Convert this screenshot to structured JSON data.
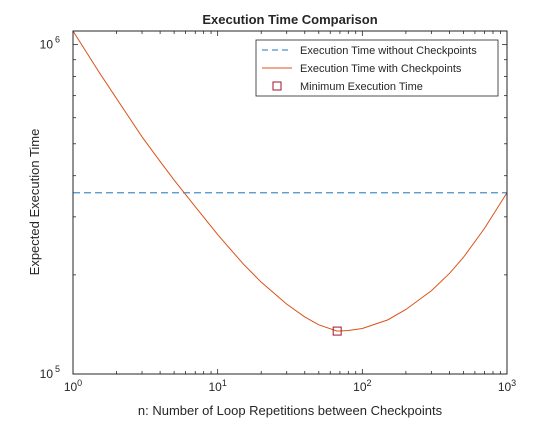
{
  "chart_data": {
    "type": "line",
    "title": "Execution Time Comparison",
    "xlabel": "n: Number of Loop Repetitions between Checkpoints",
    "ylabel": "Expected Execution Time",
    "x_scale": "log",
    "y_scale": "log",
    "xlim": [
      1,
      1000
    ],
    "ylim": [
      100000,
      1100000
    ],
    "x_ticks": [
      {
        "value": 1,
        "base": "10",
        "exp": "0"
      },
      {
        "value": 10,
        "base": "10",
        "exp": "1"
      },
      {
        "value": 100,
        "base": "10",
        "exp": "2"
      },
      {
        "value": 1000,
        "base": "10",
        "exp": "3"
      }
    ],
    "y_ticks": [
      {
        "value": 100000,
        "base": "10",
        "exp": "5"
      },
      {
        "value": 1000000,
        "base": "10",
        "exp": "6"
      }
    ],
    "grid": false,
    "legend_position": "top-right",
    "series": [
      {
        "name": "Execution Time without Checkpoints",
        "style": "dashed",
        "color": "#4a90c8",
        "x": [
          1,
          1000
        ],
        "y": [
          355000,
          355000
        ]
      },
      {
        "name": "Execution Time with Checkpoints",
        "style": "solid",
        "color": "#d95319",
        "x": [
          1,
          1.5,
          2,
          3,
          4,
          5,
          7,
          10,
          15,
          20,
          30,
          40,
          50,
          67,
          80,
          100,
          150,
          200,
          300,
          400,
          500,
          700,
          1000
        ],
        "y": [
          1100000,
          830000,
          686000,
          525000,
          442000,
          388000,
          322000,
          265000,
          216000,
          190000,
          163000,
          149000,
          141000,
          135000,
          135500,
          137500,
          146000,
          157000,
          179000,
          202000,
          226000,
          277000,
          355000
        ]
      },
      {
        "name": "Minimum Execution Time",
        "style": "marker",
        "color": "#a2142f",
        "x": [
          67
        ],
        "y": [
          135000
        ]
      }
    ]
  }
}
